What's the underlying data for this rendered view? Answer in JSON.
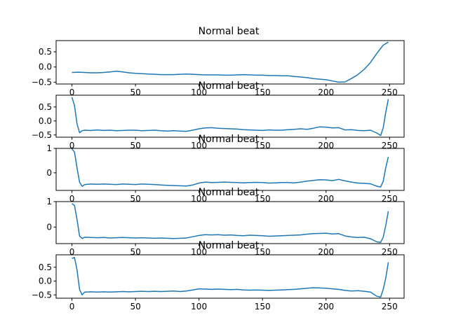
{
  "chart_data": [
    {
      "type": "line",
      "title": "Normal beat",
      "xlim": [
        -12.45,
        261.45
      ],
      "ylim": [
        -0.56,
        0.87
      ],
      "xticks": [
        0,
        50,
        100,
        150,
        200,
        250
      ],
      "yticks": [
        -0.5,
        0.0,
        0.5
      ],
      "ytick_labels": [
        "−0.5",
        "0.0",
        "0.5"
      ],
      "grid": false,
      "series": [
        {
          "x": [
            0,
            5,
            10,
            15,
            20,
            25,
            30,
            35,
            40,
            45,
            50,
            55,
            60,
            65,
            70,
            75,
            80,
            85,
            90,
            95,
            100,
            105,
            110,
            115,
            120,
            125,
            130,
            135,
            140,
            145,
            150,
            155,
            160,
            165,
            170,
            175,
            180,
            185,
            190,
            195,
            200,
            205,
            210,
            215,
            220,
            225,
            230,
            235,
            240,
            245,
            249
          ],
          "y": [
            -0.18,
            -0.17,
            -0.18,
            -0.19,
            -0.19,
            -0.18,
            -0.16,
            -0.14,
            -0.16,
            -0.19,
            -0.21,
            -0.22,
            -0.23,
            -0.24,
            -0.25,
            -0.25,
            -0.25,
            -0.24,
            -0.23,
            -0.24,
            -0.25,
            -0.26,
            -0.26,
            -0.26,
            -0.27,
            -0.27,
            -0.26,
            -0.25,
            -0.26,
            -0.27,
            -0.27,
            -0.28,
            -0.28,
            -0.29,
            -0.29,
            -0.31,
            -0.33,
            -0.35,
            -0.38,
            -0.4,
            -0.42,
            -0.46,
            -0.5,
            -0.49,
            -0.38,
            -0.25,
            -0.08,
            0.15,
            0.45,
            0.72,
            0.82
          ]
        }
      ]
    },
    {
      "type": "line",
      "title": "Normal beat",
      "xlim": [
        -12.45,
        261.45
      ],
      "ylim": [
        -0.58,
        0.92
      ],
      "xticks": [
        0,
        50,
        100,
        150,
        200,
        250
      ],
      "yticks": [
        -0.5,
        0.0,
        0.5
      ],
      "ytick_labels": [
        "−0.5",
        "0.0",
        "0.5"
      ],
      "grid": false,
      "series": [
        {
          "x": [
            0,
            2,
            4,
            6,
            8,
            10,
            15,
            20,
            25,
            30,
            35,
            40,
            45,
            50,
            55,
            60,
            65,
            70,
            75,
            80,
            85,
            90,
            95,
            100,
            105,
            110,
            115,
            120,
            125,
            130,
            135,
            140,
            145,
            150,
            155,
            160,
            165,
            170,
            175,
            180,
            185,
            190,
            195,
            200,
            205,
            210,
            215,
            220,
            225,
            230,
            235,
            240,
            243,
            245,
            247,
            249
          ],
          "y": [
            0.85,
            0.55,
            -0.1,
            -0.42,
            -0.35,
            -0.33,
            -0.34,
            -0.32,
            -0.34,
            -0.33,
            -0.35,
            -0.34,
            -0.33,
            -0.33,
            -0.35,
            -0.34,
            -0.33,
            -0.35,
            -0.36,
            -0.35,
            -0.36,
            -0.37,
            -0.33,
            -0.28,
            -0.25,
            -0.24,
            -0.26,
            -0.27,
            -0.28,
            -0.29,
            -0.31,
            -0.32,
            -0.33,
            -0.34,
            -0.32,
            -0.33,
            -0.33,
            -0.31,
            -0.3,
            -0.28,
            -0.3,
            -0.26,
            -0.21,
            -0.22,
            -0.25,
            -0.24,
            -0.32,
            -0.31,
            -0.34,
            -0.35,
            -0.33,
            -0.43,
            -0.52,
            -0.25,
            0.3,
            0.78
          ]
        }
      ]
    },
    {
      "type": "line",
      "title": "Normal beat",
      "xlim": [
        -12.45,
        261.45
      ],
      "ylim": [
        -0.72,
        1.0
      ],
      "xticks": [
        0,
        50,
        100,
        150,
        200,
        250
      ],
      "yticks": [
        0,
        1
      ],
      "ytick_labels": [
        "0",
        "1"
      ],
      "grid": false,
      "series": [
        {
          "x": [
            0,
            2,
            4,
            6,
            8,
            10,
            15,
            20,
            25,
            30,
            35,
            40,
            45,
            50,
            55,
            60,
            65,
            70,
            75,
            80,
            85,
            90,
            95,
            100,
            105,
            110,
            115,
            120,
            125,
            130,
            135,
            140,
            145,
            150,
            155,
            160,
            165,
            170,
            175,
            180,
            185,
            190,
            195,
            200,
            205,
            210,
            215,
            220,
            225,
            230,
            235,
            240,
            243,
            245,
            247,
            249
          ],
          "y": [
            0.98,
            0.85,
            0.2,
            -0.38,
            -0.55,
            -0.48,
            -0.46,
            -0.47,
            -0.46,
            -0.47,
            -0.48,
            -0.46,
            -0.47,
            -0.48,
            -0.46,
            -0.47,
            -0.48,
            -0.5,
            -0.51,
            -0.52,
            -0.53,
            -0.54,
            -0.5,
            -0.42,
            -0.38,
            -0.4,
            -0.39,
            -0.38,
            -0.39,
            -0.4,
            -0.41,
            -0.4,
            -0.39,
            -0.4,
            -0.42,
            -0.41,
            -0.4,
            -0.4,
            -0.41,
            -0.38,
            -0.34,
            -0.31,
            -0.28,
            -0.29,
            -0.32,
            -0.27,
            -0.33,
            -0.38,
            -0.42,
            -0.43,
            -0.45,
            -0.55,
            -0.58,
            -0.35,
            0.2,
            0.65
          ]
        }
      ]
    },
    {
      "type": "line",
      "title": "Normal beat",
      "xlim": [
        -12.45,
        261.45
      ],
      "ylim": [
        -0.65,
        1.0
      ],
      "xticks": [
        0,
        50,
        100,
        150,
        200,
        250
      ],
      "yticks": [
        0,
        1
      ],
      "ytick_labels": [
        "0",
        "1"
      ],
      "grid": false,
      "series": [
        {
          "x": [
            0,
            2,
            4,
            6,
            8,
            10,
            15,
            20,
            25,
            30,
            35,
            40,
            45,
            50,
            55,
            60,
            65,
            70,
            75,
            80,
            85,
            90,
            95,
            100,
            105,
            110,
            115,
            120,
            125,
            130,
            135,
            140,
            145,
            150,
            155,
            160,
            165,
            170,
            175,
            180,
            185,
            190,
            195,
            200,
            205,
            210,
            215,
            220,
            225,
            230,
            235,
            240,
            243,
            245,
            247,
            249
          ],
          "y": [
            0.92,
            0.85,
            0.3,
            -0.35,
            -0.45,
            -0.4,
            -0.41,
            -0.42,
            -0.41,
            -0.43,
            -0.42,
            -0.41,
            -0.42,
            -0.43,
            -0.42,
            -0.43,
            -0.44,
            -0.43,
            -0.44,
            -0.45,
            -0.44,
            -0.43,
            -0.38,
            -0.33,
            -0.3,
            -0.31,
            -0.3,
            -0.32,
            -0.31,
            -0.33,
            -0.34,
            -0.32,
            -0.33,
            -0.34,
            -0.36,
            -0.35,
            -0.34,
            -0.33,
            -0.32,
            -0.31,
            -0.28,
            -0.26,
            -0.25,
            -0.24,
            -0.27,
            -0.26,
            -0.35,
            -0.39,
            -0.41,
            -0.4,
            -0.46,
            -0.58,
            -0.6,
            -0.4,
            0.05,
            0.62
          ]
        }
      ]
    },
    {
      "type": "line",
      "title": "Normal beat",
      "xlim": [
        -12.45,
        261.45
      ],
      "ylim": [
        -0.62,
        0.95
      ],
      "xticks": [
        0,
        50,
        100,
        150,
        200,
        250
      ],
      "xtick_labels": [
        "0",
        "50",
        "100",
        "150",
        "200",
        "250"
      ],
      "yticks": [
        -0.5,
        0.0,
        0.5
      ],
      "ytick_labels": [
        "−0.5",
        "0.0",
        "0.5"
      ],
      "grid": false,
      "series": [
        {
          "x": [
            0,
            2,
            4,
            6,
            8,
            10,
            15,
            20,
            25,
            30,
            35,
            40,
            45,
            50,
            55,
            60,
            65,
            70,
            75,
            80,
            85,
            90,
            95,
            100,
            105,
            110,
            115,
            120,
            125,
            130,
            135,
            140,
            145,
            150,
            155,
            160,
            165,
            170,
            175,
            180,
            185,
            190,
            195,
            200,
            205,
            210,
            215,
            220,
            225,
            230,
            235,
            240,
            243,
            245,
            247,
            249
          ],
          "y": [
            0.82,
            0.85,
            0.4,
            -0.3,
            -0.5,
            -0.4,
            -0.39,
            -0.4,
            -0.39,
            -0.4,
            -0.39,
            -0.38,
            -0.39,
            -0.38,
            -0.37,
            -0.38,
            -0.37,
            -0.38,
            -0.37,
            -0.36,
            -0.38,
            -0.36,
            -0.32,
            -0.28,
            -0.29,
            -0.3,
            -0.29,
            -0.3,
            -0.31,
            -0.3,
            -0.32,
            -0.33,
            -0.32,
            -0.33,
            -0.34,
            -0.33,
            -0.32,
            -0.31,
            -0.3,
            -0.28,
            -0.26,
            -0.24,
            -0.25,
            -0.26,
            -0.28,
            -0.3,
            -0.34,
            -0.36,
            -0.35,
            -0.37,
            -0.4,
            -0.55,
            -0.58,
            -0.3,
            0.1,
            0.68
          ]
        }
      ]
    }
  ]
}
